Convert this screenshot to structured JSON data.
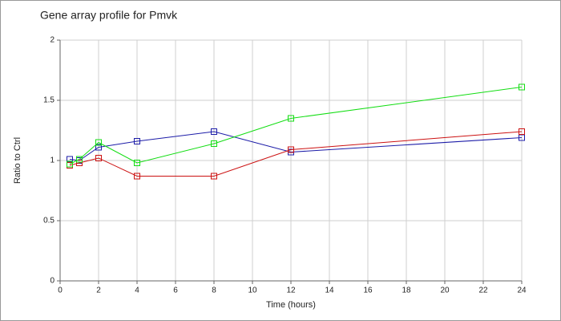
{
  "chart_data": {
    "type": "line",
    "title": "Gene array profile for Pmvk",
    "x_label": "Time (hours)",
    "y_label": "Ratio to Ctrl",
    "x": [
      0.5,
      1,
      2,
      4,
      8,
      12,
      24
    ],
    "series": [
      {
        "color": "#1c1ca8",
        "values": [
          1.01,
          1.0,
          1.11,
          1.16,
          1.24,
          1.07,
          1.19
        ]
      },
      {
        "color": "#cc1111",
        "values": [
          0.96,
          0.98,
          1.02,
          0.87,
          0.87,
          1.09,
          1.24
        ]
      },
      {
        "color": "#11dd11",
        "values": [
          0.97,
          1.01,
          1.15,
          0.98,
          1.14,
          1.35,
          1.61
        ]
      }
    ],
    "xlim": [
      0,
      24
    ],
    "xticks": [
      0,
      2,
      4,
      6,
      8,
      10,
      12,
      14,
      16,
      18,
      20,
      22,
      24
    ],
    "ylim": [
      0,
      2
    ],
    "yticks": [
      0,
      0.5,
      1,
      1.5,
      2
    ],
    "grid": true
  }
}
